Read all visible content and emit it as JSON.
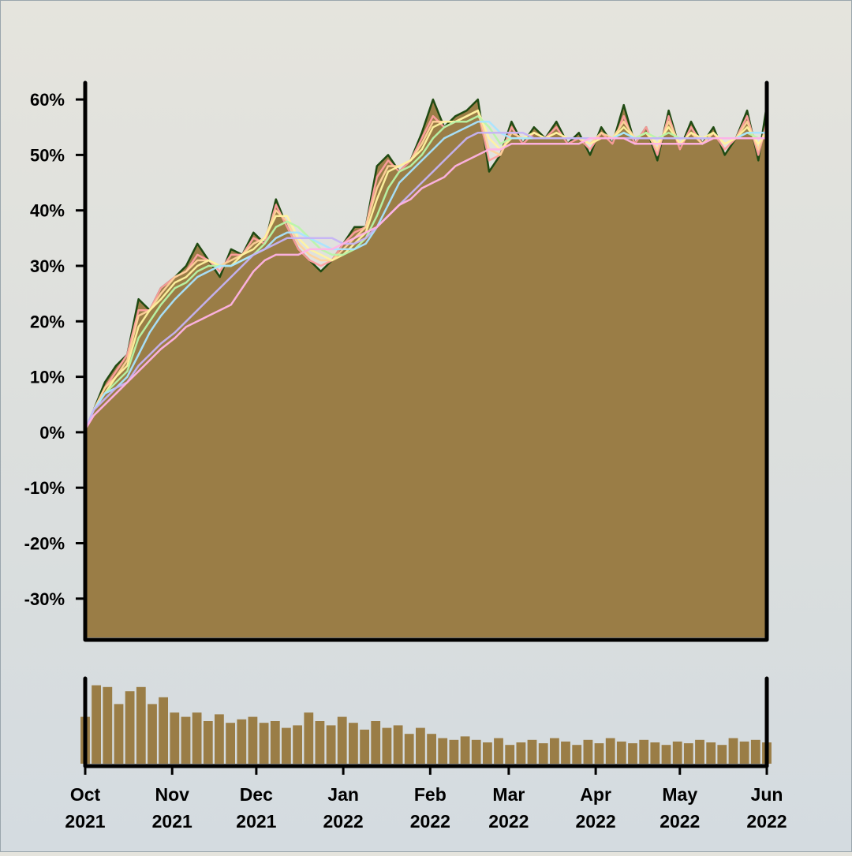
{
  "chart_data": {
    "type": "area",
    "x_range": [
      "2021-10-01",
      "2022-06-01"
    ],
    "ylim": [
      -0.37,
      0.63
    ],
    "y_ticks": [
      0.6,
      0.5,
      0.4,
      0.3,
      0.2,
      0.1,
      0.0,
      -0.1,
      -0.2,
      -0.3
    ],
    "y_tick_labels": [
      "60%",
      "50%",
      "40%",
      "30%",
      "20%",
      "10%",
      "0%",
      "-10%",
      "-20%",
      "-30%"
    ],
    "x_ticks": [
      {
        "date": "2021-10-01",
        "month": "Oct",
        "year": "2021"
      },
      {
        "date": "2021-11-01",
        "month": "Nov",
        "year": "2021"
      },
      {
        "date": "2021-12-01",
        "month": "Dec",
        "year": "2021"
      },
      {
        "date": "2022-01-01",
        "month": "Jan",
        "year": "2022"
      },
      {
        "date": "2022-02-01",
        "month": "Feb",
        "year": "2022"
      },
      {
        "date": "2022-03-01",
        "month": "Mar",
        "year": "2022"
      },
      {
        "date": "2022-04-01",
        "month": "Apr",
        "year": "2022"
      },
      {
        "date": "2022-05-01",
        "month": "May",
        "year": "2022"
      },
      {
        "date": "2022-06-01",
        "month": "Jun",
        "year": "2022"
      }
    ],
    "area_series": {
      "x": [
        "2021-10-01",
        "2021-10-04",
        "2021-10-08",
        "2021-10-12",
        "2021-10-16",
        "2021-10-20",
        "2021-10-24",
        "2021-10-28",
        "2021-11-02",
        "2021-11-06",
        "2021-11-10",
        "2021-11-14",
        "2021-11-18",
        "2021-11-22",
        "2021-11-26",
        "2021-11-30",
        "2021-12-04",
        "2021-12-08",
        "2021-12-12",
        "2021-12-16",
        "2021-12-20",
        "2021-12-24",
        "2021-12-28",
        "2022-01-01",
        "2022-01-05",
        "2022-01-09",
        "2022-01-13",
        "2022-01-17",
        "2022-01-21",
        "2022-01-25",
        "2022-01-29",
        "2022-02-02",
        "2022-02-06",
        "2022-02-10",
        "2022-02-14",
        "2022-02-18",
        "2022-02-22",
        "2022-02-26",
        "2022-03-02",
        "2022-03-06",
        "2022-03-10",
        "2022-03-14",
        "2022-03-18",
        "2022-03-22",
        "2022-03-26",
        "2022-03-30",
        "2022-04-03",
        "2022-04-07",
        "2022-04-11",
        "2022-04-15",
        "2022-04-19",
        "2022-04-23",
        "2022-04-27",
        "2022-05-01",
        "2022-05-05",
        "2022-05-09",
        "2022-05-13",
        "2022-05-17",
        "2022-05-21",
        "2022-05-25",
        "2022-05-29",
        "2022-06-01"
      ],
      "values": [
        0.005,
        0.04,
        0.09,
        0.12,
        0.14,
        0.24,
        0.22,
        0.26,
        0.28,
        0.3,
        0.34,
        0.31,
        0.28,
        0.33,
        0.32,
        0.36,
        0.34,
        0.42,
        0.37,
        0.33,
        0.31,
        0.29,
        0.31,
        0.34,
        0.37,
        0.37,
        0.48,
        0.5,
        0.47,
        0.49,
        0.54,
        0.6,
        0.55,
        0.57,
        0.58,
        0.6,
        0.47,
        0.5,
        0.56,
        0.52,
        0.55,
        0.53,
        0.56,
        0.52,
        0.54,
        0.5,
        0.55,
        0.52,
        0.59,
        0.52,
        0.55,
        0.49,
        0.58,
        0.51,
        0.56,
        0.52,
        0.55,
        0.5,
        0.53,
        0.58,
        0.49,
        0.59
      ]
    },
    "series": [
      {
        "color": "#ff9f9f",
        "values": [
          0.005,
          0.04,
          0.08,
          0.11,
          0.14,
          0.22,
          0.22,
          0.26,
          0.28,
          0.29,
          0.32,
          0.31,
          0.29,
          0.32,
          0.32,
          0.35,
          0.34,
          0.41,
          0.37,
          0.33,
          0.31,
          0.3,
          0.31,
          0.34,
          0.36,
          0.37,
          0.46,
          0.49,
          0.47,
          0.49,
          0.53,
          0.57,
          0.55,
          0.56,
          0.57,
          0.58,
          0.49,
          0.5,
          0.55,
          0.52,
          0.54,
          0.53,
          0.55,
          0.52,
          0.53,
          0.51,
          0.54,
          0.52,
          0.57,
          0.52,
          0.55,
          0.5,
          0.57,
          0.51,
          0.55,
          0.52,
          0.54,
          0.51,
          0.53,
          0.57,
          0.5,
          0.56
        ]
      },
      {
        "color": "#ffd29a",
        "values": [
          0.005,
          0.04,
          0.08,
          0.1,
          0.13,
          0.21,
          0.22,
          0.25,
          0.28,
          0.29,
          0.31,
          0.31,
          0.3,
          0.31,
          0.32,
          0.34,
          0.35,
          0.4,
          0.38,
          0.34,
          0.32,
          0.31,
          0.31,
          0.33,
          0.35,
          0.37,
          0.44,
          0.48,
          0.48,
          0.49,
          0.52,
          0.56,
          0.56,
          0.56,
          0.57,
          0.58,
          0.51,
          0.5,
          0.54,
          0.53,
          0.54,
          0.53,
          0.54,
          0.53,
          0.53,
          0.52,
          0.54,
          0.53,
          0.56,
          0.53,
          0.54,
          0.51,
          0.56,
          0.52,
          0.54,
          0.52,
          0.54,
          0.52,
          0.53,
          0.56,
          0.51,
          0.55
        ]
      },
      {
        "color": "#fff3a0",
        "values": [
          0.005,
          0.04,
          0.07,
          0.1,
          0.12,
          0.19,
          0.22,
          0.24,
          0.27,
          0.28,
          0.3,
          0.31,
          0.3,
          0.3,
          0.32,
          0.33,
          0.35,
          0.39,
          0.39,
          0.35,
          0.33,
          0.32,
          0.31,
          0.32,
          0.34,
          0.36,
          0.42,
          0.47,
          0.48,
          0.49,
          0.51,
          0.55,
          0.56,
          0.56,
          0.57,
          0.58,
          0.53,
          0.51,
          0.53,
          0.53,
          0.54,
          0.53,
          0.54,
          0.53,
          0.53,
          0.52,
          0.53,
          0.53,
          0.55,
          0.53,
          0.54,
          0.52,
          0.55,
          0.52,
          0.54,
          0.53,
          0.54,
          0.52,
          0.53,
          0.55,
          0.52,
          0.54
        ]
      },
      {
        "color": "#b8f5a8",
        "values": [
          0.005,
          0.04,
          0.07,
          0.09,
          0.11,
          0.17,
          0.2,
          0.23,
          0.26,
          0.27,
          0.29,
          0.3,
          0.3,
          0.3,
          0.31,
          0.32,
          0.34,
          0.37,
          0.38,
          0.37,
          0.35,
          0.33,
          0.32,
          0.32,
          0.33,
          0.35,
          0.39,
          0.44,
          0.47,
          0.48,
          0.5,
          0.53,
          0.55,
          0.56,
          0.56,
          0.57,
          0.55,
          0.52,
          0.53,
          0.53,
          0.53,
          0.53,
          0.53,
          0.53,
          0.53,
          0.53,
          0.53,
          0.53,
          0.54,
          0.53,
          0.54,
          0.53,
          0.54,
          0.53,
          0.53,
          0.53,
          0.53,
          0.53,
          0.53,
          0.54,
          0.53,
          0.53
        ]
      },
      {
        "color": "#a8e4ff",
        "values": [
          0.005,
          0.04,
          0.07,
          0.08,
          0.1,
          0.14,
          0.18,
          0.21,
          0.24,
          0.26,
          0.28,
          0.29,
          0.3,
          0.3,
          0.31,
          0.32,
          0.33,
          0.35,
          0.36,
          0.36,
          0.35,
          0.34,
          0.33,
          0.33,
          0.33,
          0.34,
          0.37,
          0.41,
          0.45,
          0.47,
          0.49,
          0.51,
          0.53,
          0.54,
          0.55,
          0.56,
          0.56,
          0.54,
          0.53,
          0.53,
          0.53,
          0.53,
          0.53,
          0.53,
          0.53,
          0.53,
          0.53,
          0.53,
          0.54,
          0.53,
          0.53,
          0.53,
          0.53,
          0.53,
          0.53,
          0.53,
          0.53,
          0.53,
          0.53,
          0.54,
          0.54,
          0.54
        ]
      },
      {
        "color": "#c5b3f5",
        "values": [
          0.005,
          0.04,
          0.06,
          0.08,
          0.09,
          0.12,
          0.14,
          0.16,
          0.18,
          0.2,
          0.22,
          0.24,
          0.26,
          0.28,
          0.3,
          0.32,
          0.33,
          0.34,
          0.35,
          0.35,
          0.35,
          0.35,
          0.35,
          0.34,
          0.34,
          0.35,
          0.37,
          0.39,
          0.41,
          0.43,
          0.45,
          0.47,
          0.49,
          0.51,
          0.53,
          0.54,
          0.54,
          0.54,
          0.54,
          0.54,
          0.53,
          0.53,
          0.53,
          0.53,
          0.53,
          0.53,
          0.53,
          0.53,
          0.53,
          0.53,
          0.53,
          0.53,
          0.53,
          0.53,
          0.53,
          0.53,
          0.53,
          0.53,
          0.53,
          0.53,
          0.53,
          0.53
        ]
      },
      {
        "color": "#ffb3e6",
        "values": [
          0.005,
          0.03,
          0.05,
          0.07,
          0.09,
          0.11,
          0.13,
          0.15,
          0.17,
          0.19,
          0.2,
          0.21,
          0.22,
          0.23,
          0.26,
          0.29,
          0.31,
          0.32,
          0.32,
          0.32,
          0.33,
          0.33,
          0.33,
          0.34,
          0.35,
          0.36,
          0.37,
          0.39,
          0.41,
          0.42,
          0.44,
          0.45,
          0.46,
          0.48,
          0.49,
          0.5,
          0.51,
          0.51,
          0.52,
          0.52,
          0.52,
          0.52,
          0.52,
          0.52,
          0.52,
          0.53,
          0.53,
          0.53,
          0.53,
          0.52,
          0.52,
          0.52,
          0.52,
          0.52,
          0.52,
          0.52,
          0.53,
          0.53,
          0.53,
          0.53,
          0.53,
          0.53
        ]
      }
    ],
    "volume": [
      0.55,
      0.92,
      0.9,
      0.7,
      0.85,
      0.9,
      0.7,
      0.78,
      0.6,
      0.55,
      0.6,
      0.5,
      0.58,
      0.48,
      0.52,
      0.55,
      0.48,
      0.5,
      0.42,
      0.45,
      0.6,
      0.5,
      0.45,
      0.55,
      0.48,
      0.4,
      0.5,
      0.42,
      0.45,
      0.35,
      0.42,
      0.35,
      0.3,
      0.28,
      0.32,
      0.28,
      0.25,
      0.3,
      0.22,
      0.25,
      0.28,
      0.24,
      0.3,
      0.26,
      0.22,
      0.28,
      0.24,
      0.3,
      0.26,
      0.24,
      0.28,
      0.25,
      0.22,
      0.26,
      0.24,
      0.28,
      0.25,
      0.22,
      0.3,
      0.26,
      0.28,
      0.25
    ],
    "grid": false,
    "legend": "none"
  }
}
